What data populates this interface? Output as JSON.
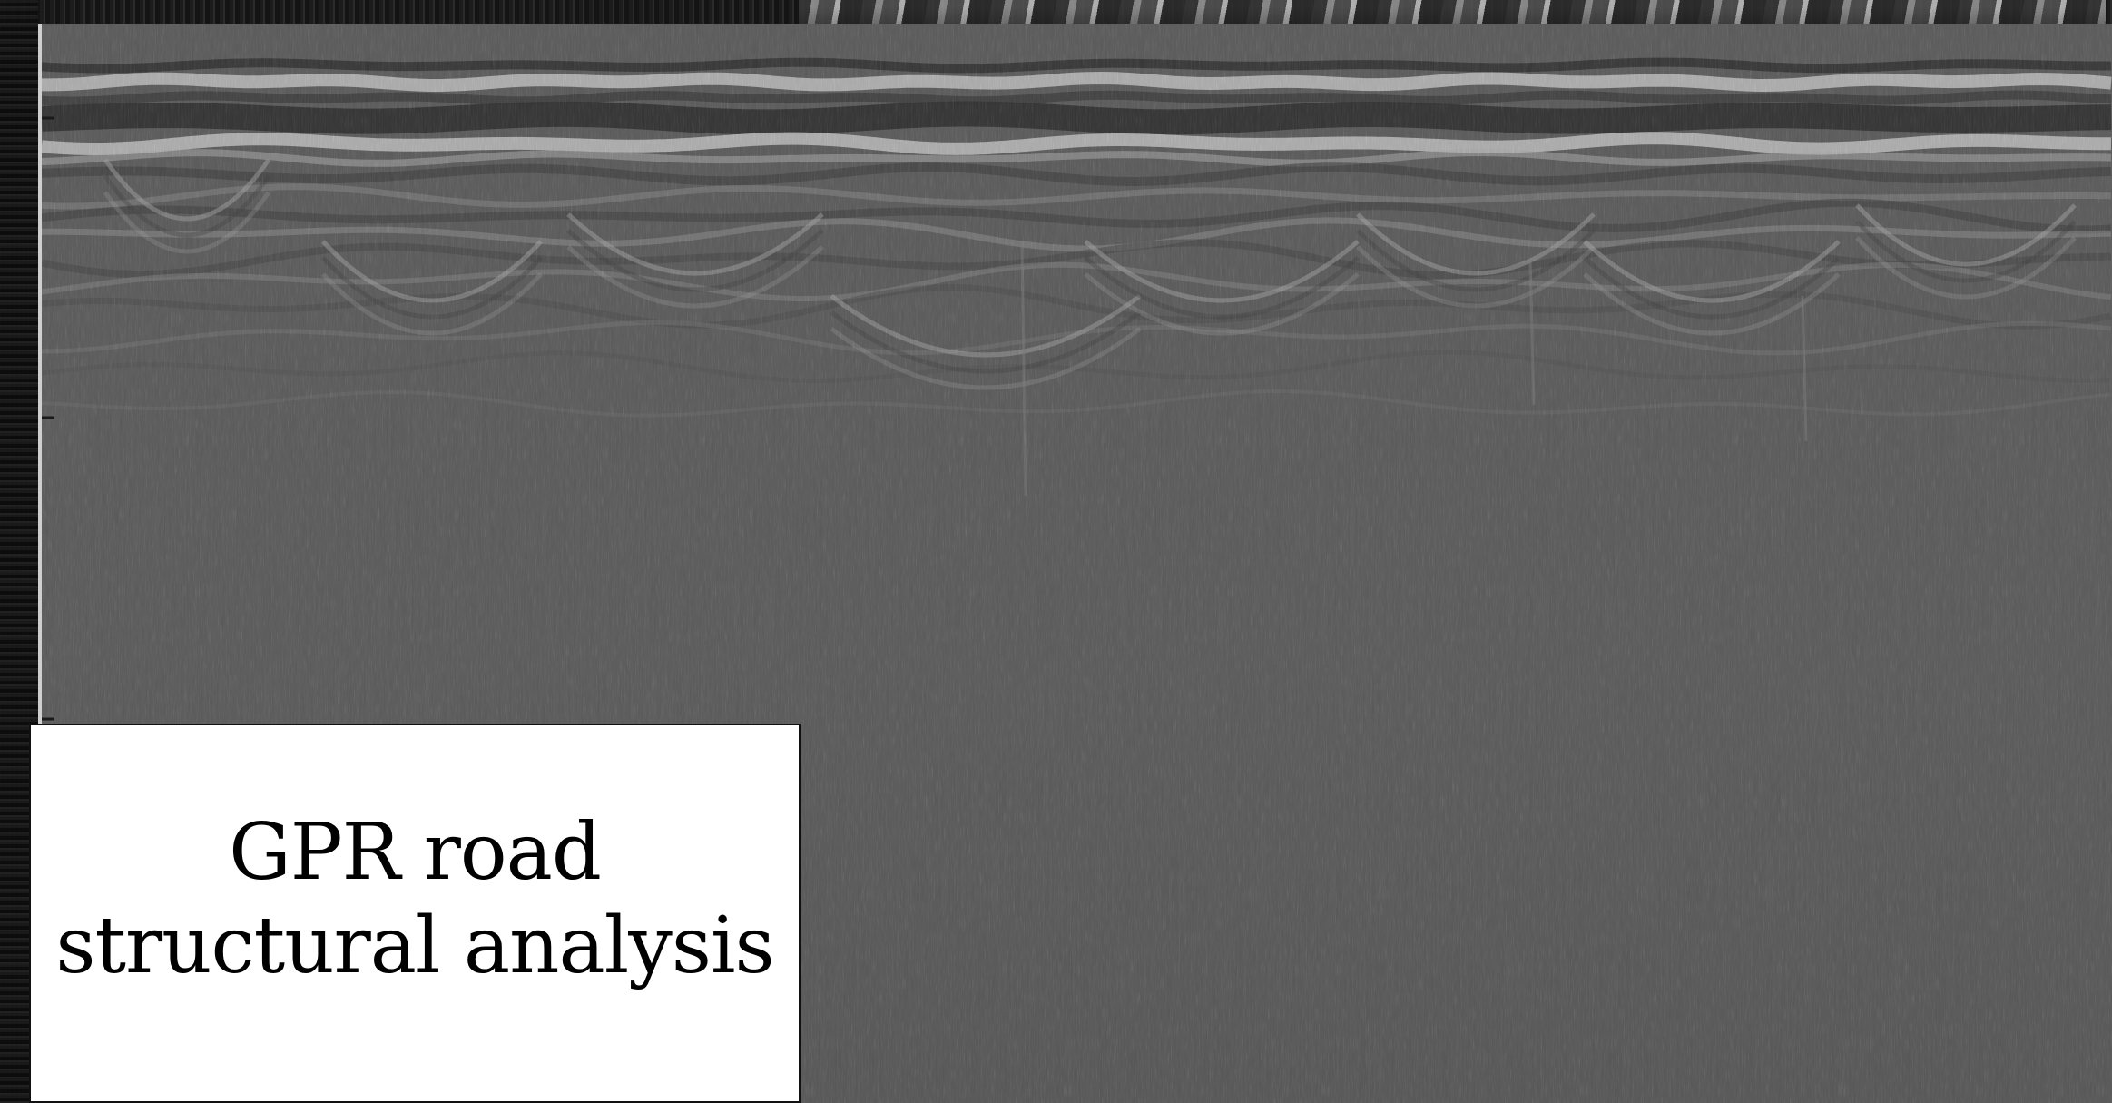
{
  "caption": {
    "title": "GPR road structural analysis"
  },
  "image": {
    "subject": "ground-penetrating-radar-radargram",
    "colors": {
      "background": "#585858",
      "bright_reflection": "#e8e8e8",
      "dark_reflection": "#1a1a1a",
      "caption_box": "#ffffff",
      "caption_text": "#000000"
    }
  }
}
